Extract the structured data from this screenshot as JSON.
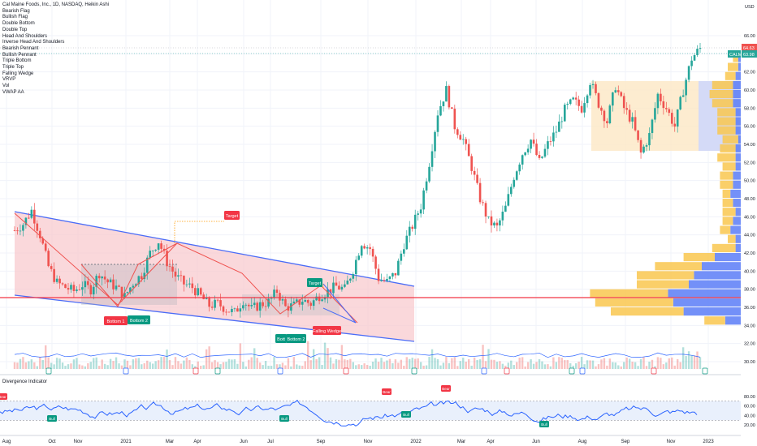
{
  "header": {
    "title": "Cal Maine Foods, Inc., 1D, NASDAQ, Heikin Ashi",
    "indicators": [
      "Bearish Flag",
      "Bullish Flag",
      "Double Bottom",
      "Double Top",
      "Head And Shoulders",
      "Inverse Head And Shoulders",
      "Bearish Pennant",
      "Bullish Pennant",
      "Triple Bottom",
      "Triple Top",
      "Falling Wedge",
      "VRVP",
      "Vol",
      "VWAP AA"
    ]
  },
  "price_axis": {
    "currency": "USD",
    "ticks": [
      "66.00",
      "64.00",
      "62.00",
      "60.00",
      "58.00",
      "56.00",
      "54.00",
      "52.00",
      "50.00",
      "48.00",
      "46.00",
      "44.00",
      "42.00",
      "40.00",
      "38.00",
      "36.00",
      "34.00",
      "32.00",
      "30.00"
    ],
    "high_label": "64.63",
    "symbol_label": "CALM",
    "last_label": "63.98"
  },
  "time_axis": [
    "Aug",
    "Oct",
    "Nov",
    "2021",
    "Mar",
    "Apr",
    "Jun",
    "Jul",
    "Sep",
    "Nov",
    "2022",
    "Mar",
    "Apr",
    "Jun",
    "Aug",
    "Sep",
    "Nov",
    "2023"
  ],
  "pattern_labels": {
    "target1": "Target",
    "target2": "Target",
    "bottom1": "Bottom 1",
    "bottom2": "Bottom 2",
    "bott": "Bott",
    "bottom2b": "Bottom 2",
    "falling_wedge": "Falling Wedge"
  },
  "divergence": {
    "title": "Divergence Indicator",
    "ticks": [
      "80.00",
      "60.00",
      "40.00",
      "20.00"
    ],
    "signals": [
      "Bear",
      "Bull",
      "Bull",
      "Bear",
      "Bull",
      "Bear",
      "Bull"
    ]
  },
  "colors": {
    "up": "#26a69a",
    "down": "#ef5350",
    "wedge_fill": "#f8c8cc",
    "trend_line": "#4a6cf7",
    "support_line": "#f23645",
    "vrvp_orange": "#f9c74f",
    "vrvp_blue": "#5b7cf7",
    "osc_line": "#2962ff",
    "osc_band": "#e3ecfb"
  },
  "chart_data": {
    "type": "candlestick",
    "title": "Cal Maine Foods, Inc., 1D, NASDAQ, Heikin Ashi",
    "ylim": [
      29,
      67
    ],
    "x": [
      "Aug",
      "Oct",
      "Nov",
      "2021",
      "Mar",
      "Apr",
      "Jun",
      "Jul",
      "Sep",
      "Nov",
      "2022",
      "Mar",
      "Apr",
      "Jun",
      "Aug",
      "Sep",
      "Nov",
      "2023"
    ],
    "close_path": [
      [
        0,
        44.5
      ],
      [
        3,
        45.2
      ],
      [
        6,
        46.7
      ],
      [
        9,
        44.0
      ],
      [
        12,
        40.5
      ],
      [
        15,
        38.7
      ],
      [
        18,
        38.2
      ],
      [
        21,
        37.8
      ],
      [
        24,
        38.5
      ],
      [
        27,
        38.0
      ],
      [
        30,
        39.8
      ],
      [
        33,
        38.8
      ],
      [
        36,
        38.2
      ],
      [
        39,
        37.2
      ],
      [
        42,
        38.7
      ],
      [
        45,
        39.6
      ],
      [
        48,
        42.0
      ],
      [
        51,
        43.3
      ],
      [
        54,
        41.0
      ],
      [
        57,
        39.5
      ],
      [
        60,
        38.6
      ],
      [
        63,
        38.2
      ],
      [
        66,
        37.2
      ],
      [
        69,
        36.2
      ],
      [
        72,
        36.4
      ],
      [
        75,
        35.8
      ],
      [
        78,
        35.4
      ],
      [
        81,
        36.8
      ],
      [
        84,
        35.8
      ],
      [
        87,
        36.3
      ],
      [
        90,
        36.6
      ],
      [
        93,
        37.8
      ],
      [
        96,
        36.0
      ],
      [
        99,
        36.2
      ],
      [
        102,
        36.8
      ],
      [
        105,
        36.4
      ],
      [
        108,
        37.3
      ],
      [
        111,
        37.8
      ],
      [
        114,
        38.3
      ],
      [
        117,
        38.0
      ],
      [
        120,
        40.2
      ],
      [
        123,
        43.2
      ],
      [
        126,
        42.5
      ],
      [
        129,
        39.2
      ],
      [
        132,
        38.8
      ],
      [
        135,
        39.8
      ],
      [
        138,
        43.0
      ],
      [
        141,
        45.0
      ],
      [
        144,
        47.2
      ],
      [
        147,
        52.0
      ],
      [
        150,
        57.5
      ],
      [
        153,
        60.0
      ],
      [
        156,
        56.0
      ],
      [
        159,
        54.5
      ],
      [
        162,
        51.5
      ],
      [
        165,
        48.0
      ],
      [
        168,
        45.5
      ],
      [
        171,
        44.8
      ],
      [
        174,
        47.0
      ],
      [
        177,
        50.5
      ],
      [
        180,
        53.0
      ],
      [
        183,
        54.5
      ],
      [
        186,
        52.0
      ],
      [
        189,
        54.0
      ],
      [
        192,
        55.5
      ],
      [
        195,
        57.8
      ],
      [
        198,
        58.8
      ],
      [
        201,
        58.0
      ],
      [
        204,
        61.0
      ],
      [
        207,
        58.5
      ],
      [
        210,
        56.5
      ],
      [
        213,
        60.5
      ],
      [
        216,
        58.0
      ],
      [
        219,
        56.5
      ],
      [
        222,
        53.0
      ],
      [
        225,
        55.0
      ],
      [
        228,
        59.5
      ],
      [
        231,
        58.0
      ],
      [
        234,
        56.0
      ],
      [
        237,
        60.0
      ],
      [
        240,
        63.5
      ],
      [
        243,
        64.6
      ]
    ],
    "volume_profile": {
      "right_side": true,
      "price_levels": [
        63,
        62,
        61,
        60,
        59,
        58,
        57,
        56,
        55,
        54,
        53,
        52,
        51,
        50,
        49,
        48,
        47,
        46,
        45,
        44,
        43,
        42,
        41,
        40,
        39,
        38,
        37,
        36,
        35,
        34
      ],
      "up_volume": [
        2,
        4,
        4,
        8,
        9,
        8,
        7,
        7,
        7,
        6,
        6,
        7,
        5,
        5,
        5,
        3,
        4,
        5,
        4,
        4,
        3,
        9,
        12,
        18,
        22,
        20,
        30,
        30,
        28,
        8
      ],
      "down_volume": [
        1,
        1,
        2,
        3,
        3,
        3,
        2,
        2,
        2,
        1,
        2,
        2,
        2,
        3,
        3,
        4,
        3,
        2,
        3,
        4,
        2,
        2,
        10,
        15,
        18,
        20,
        28,
        26,
        22,
        6
      ]
    },
    "divergence_ylim": [
      10,
      95
    ],
    "divergence_ticks": [
      80,
      60,
      40,
      20
    ],
    "volume_axis": [],
    "patterns": [
      "Bearish Flag",
      "Bullish Flag",
      "Double Bottom",
      "Double Top",
      "Head And Shoulders",
      "Inverse Head And Shoulders",
      "Bearish Pennant",
      "Bullish Pennant",
      "Triple Bottom",
      "Triple Top",
      "Falling Wedge"
    ]
  }
}
